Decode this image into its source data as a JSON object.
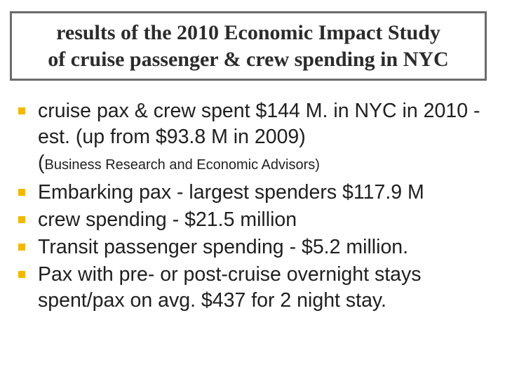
{
  "title": {
    "line1": "results of the 2010 Economic Impact Study",
    "line2": "of cruise passenger & crew spending in NYC"
  },
  "bullets": [
    {
      "text_main": "cruise pax & crew spent $144 M.  in NYC in 2010 - est.  (up from $93.8 M in 2009)",
      "paren_open": "(",
      "text_note": "Business Research and Economic Advisors)"
    },
    {
      "text": "Embarking pax - largest spenders $117.9 M"
    },
    {
      "text": "crew spending - $21.5 million"
    },
    {
      "text": "Transit passenger spending - $5.2 million."
    },
    {
      "text": "Pax with pre- or post-cruise overnight stays spent/pax on avg. $437 for 2 night stay."
    }
  ],
  "colors": {
    "bullet_marker": "#f2b800",
    "title_border": "#6b6b6b"
  }
}
